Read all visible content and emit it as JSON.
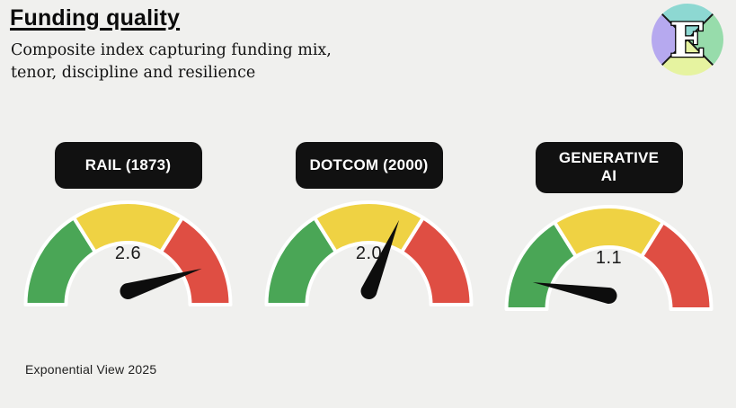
{
  "header": {
    "title": "Funding quality",
    "subtitle": "Composite index capturing funding mix,\ntenor, discipline and resilience"
  },
  "logo": {
    "letter": "E",
    "colors": {
      "top": "#8dd8d2",
      "right": "#97dcab",
      "bottom": "#e6f3a0",
      "left": "#b6a9ef",
      "divider": "#1a1a1a"
    }
  },
  "gauge_style": {
    "green": "#4aa656",
    "yellow": "#efd243",
    "red": "#df4e43",
    "ring_stroke": "#ffffff",
    "needle": "#0d0d0d",
    "label_bg": "#111111",
    "label_fg": "#ffffff",
    "background": "#f0f0ee"
  },
  "gauges": [
    {
      "id": "rail",
      "label": "RAIL (1873)",
      "value": "2.6",
      "needle_angle_deg": -17
    },
    {
      "id": "dotcom",
      "label": "DOTCOM (2000)",
      "value": "2.0",
      "needle_angle_deg": -67
    },
    {
      "id": "genai",
      "label": "GENERATIVE\nAI",
      "value": "1.1",
      "needle_angle_deg": -170
    }
  ],
  "footer": {
    "credit": "Exponential View 2025"
  },
  "chart_data": {
    "type": "gauge",
    "title": "Funding quality",
    "subtitle": "Composite index capturing funding mix, tenor, discipline and resilience",
    "gauges": [
      {
        "label": "RAIL (1873)",
        "value": 2.6
      },
      {
        "label": "DOTCOM (2000)",
        "value": 2.0
      },
      {
        "label": "GENERATIVE AI",
        "value": 1.1
      }
    ],
    "zones": [
      {
        "name": "green",
        "color": "#4aa656",
        "arc_deg": [
          180,
          122
        ]
      },
      {
        "name": "yellow",
        "color": "#efd243",
        "arc_deg": [
          122,
          58
        ]
      },
      {
        "name": "red",
        "color": "#df4e43",
        "arc_deg": [
          58,
          0
        ]
      }
    ],
    "legend_position": "none",
    "source": "Exponential View 2025"
  }
}
